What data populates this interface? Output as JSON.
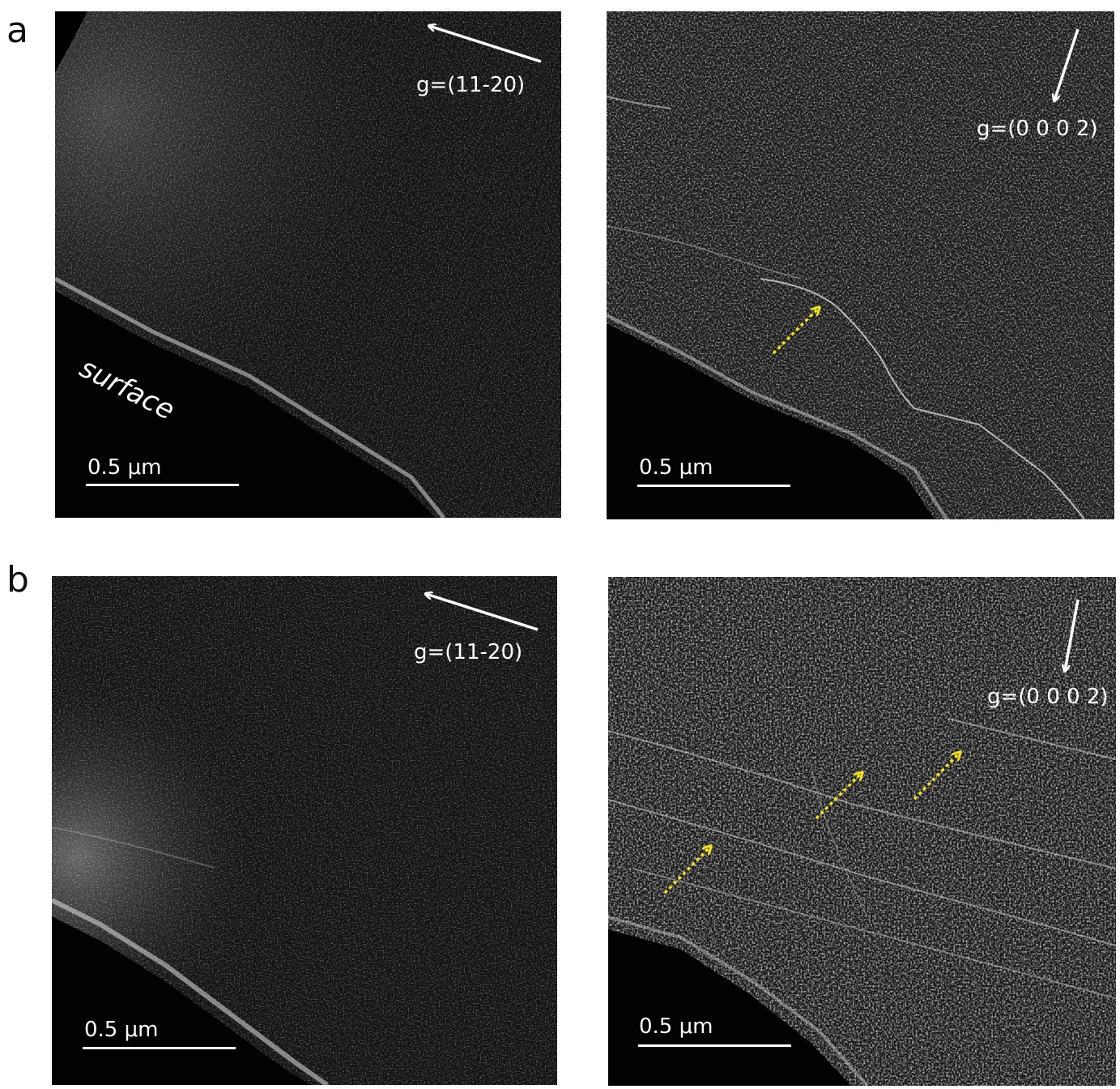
{
  "figure": {
    "row_a": {
      "label": "a",
      "left_panel": {
        "g_vector": "g=(11-20)",
        "scale": "0.5 μm",
        "surface_label": "surface"
      },
      "right_panel": {
        "g_vector": "g=(0 0 0 2)",
        "scale": "0.5 μm"
      }
    },
    "row_b": {
      "label": "b",
      "left_panel": {
        "g_vector": "g=(11-20)",
        "scale": "0.5 μm"
      },
      "right_panel": {
        "g_vector": "g=(0 0 0 2)",
        "scale": "0.5 μm"
      }
    }
  },
  "colors": {
    "background": "#ffffff",
    "panel": "#060606",
    "annotation": "#ffffff",
    "dislocation_arrow": "#f2e21a"
  }
}
